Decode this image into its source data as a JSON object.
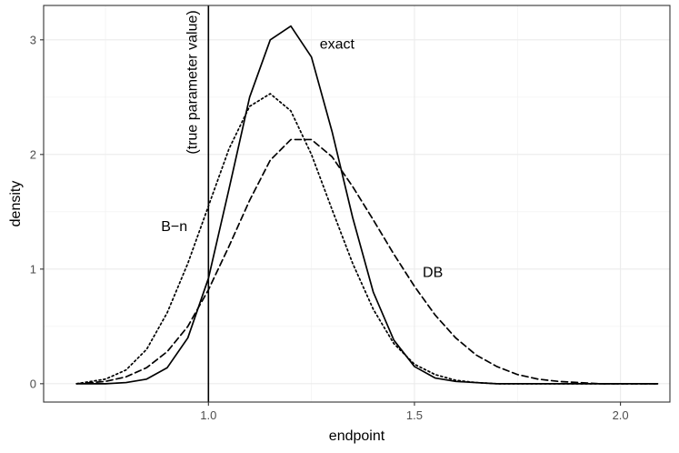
{
  "chart_data": {
    "type": "line",
    "xlabel": "endpoint",
    "ylabel": "density",
    "xlim": [
      0.6,
      2.12
    ],
    "ylim": [
      -0.16,
      3.3
    ],
    "x_ticks": [
      1.0,
      1.5,
      2.0
    ],
    "x_tick_labels": [
      "1.0",
      "1.5",
      "2.0"
    ],
    "y_ticks": [
      0,
      1,
      2,
      3
    ],
    "y_tick_labels": [
      "0",
      "1",
      "2",
      "3"
    ],
    "grid": true,
    "legend": "none",
    "vline": {
      "x": 1.0,
      "label": "(true parameter value)"
    },
    "series": [
      {
        "name": "exact",
        "style": "solid",
        "x": [
          0.68,
          0.75,
          0.8,
          0.85,
          0.9,
          0.95,
          1.0,
          1.05,
          1.1,
          1.15,
          1.2,
          1.25,
          1.3,
          1.35,
          1.4,
          1.45,
          1.5,
          1.55,
          1.6,
          1.7,
          1.8,
          1.9,
          2.0,
          2.09
        ],
        "y": [
          0.0,
          0.0,
          0.01,
          0.04,
          0.14,
          0.4,
          0.92,
          1.7,
          2.5,
          3.0,
          3.12,
          2.85,
          2.2,
          1.45,
          0.8,
          0.38,
          0.15,
          0.05,
          0.02,
          0.0,
          0.0,
          0.0,
          0.0,
          0.0
        ]
      },
      {
        "name": "DB",
        "style": "dashed",
        "x": [
          0.68,
          0.75,
          0.8,
          0.85,
          0.9,
          0.95,
          1.0,
          1.05,
          1.1,
          1.15,
          1.2,
          1.25,
          1.3,
          1.35,
          1.4,
          1.45,
          1.5,
          1.55,
          1.6,
          1.65,
          1.7,
          1.75,
          1.8,
          1.85,
          1.9,
          1.95,
          2.0,
          2.09
        ],
        "y": [
          0.0,
          0.02,
          0.06,
          0.14,
          0.28,
          0.5,
          0.82,
          1.2,
          1.6,
          1.95,
          2.13,
          2.13,
          1.98,
          1.72,
          1.43,
          1.13,
          0.85,
          0.6,
          0.4,
          0.25,
          0.15,
          0.08,
          0.04,
          0.02,
          0.01,
          0.0,
          0.0,
          0.0
        ]
      },
      {
        "name": "B−n",
        "style": "dotted",
        "x": [
          0.68,
          0.75,
          0.8,
          0.85,
          0.9,
          0.95,
          1.0,
          1.05,
          1.1,
          1.15,
          1.2,
          1.25,
          1.3,
          1.35,
          1.4,
          1.45,
          1.5,
          1.55,
          1.6,
          1.65,
          1.7,
          1.8,
          1.9,
          2.0,
          2.09
        ],
        "y": [
          0.0,
          0.04,
          0.12,
          0.3,
          0.62,
          1.05,
          1.55,
          2.05,
          2.42,
          2.53,
          2.38,
          2.0,
          1.52,
          1.05,
          0.65,
          0.35,
          0.17,
          0.08,
          0.03,
          0.01,
          0.0,
          0.0,
          0.0,
          0.0,
          0.0
        ]
      }
    ],
    "annotations": [
      {
        "text": "exact",
        "x": 1.27,
        "y": 2.97,
        "anchor": "start"
      },
      {
        "text": "DB",
        "x": 1.52,
        "y": 0.98,
        "anchor": "start"
      },
      {
        "text": "B−n",
        "x": 0.885,
        "y": 1.38,
        "anchor": "start"
      }
    ]
  }
}
